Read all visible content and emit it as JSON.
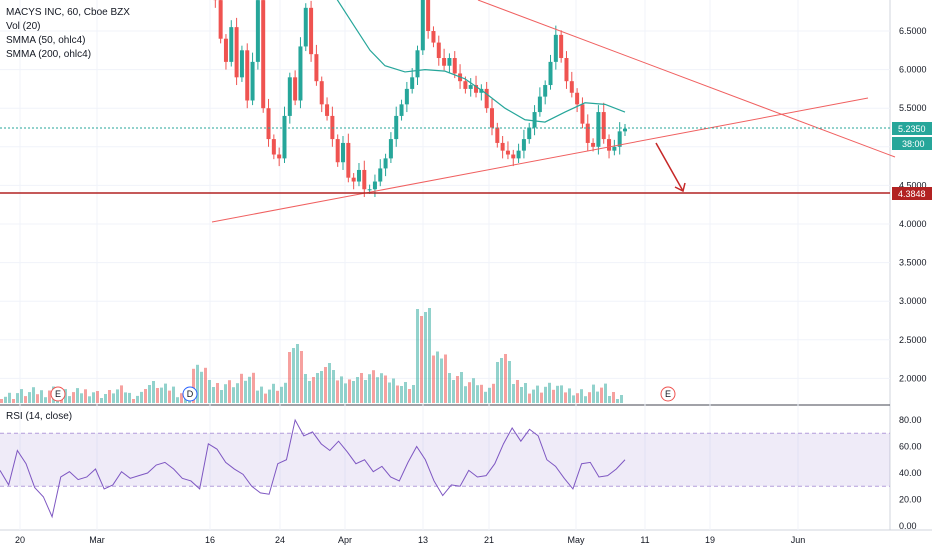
{
  "legend": {
    "title": "MACYS INC, 60, Cboe BZX",
    "vol": "Vol (20)",
    "smma50": "SMMA (50, ohlc4)",
    "smma200": "SMMA (200, ohlc4)"
  },
  "rsi_label": "RSI (14, close)",
  "chart_data": [
    {
      "type": "candlestick",
      "title": "MACYS INC, 60, Cboe BZX",
      "ylim": [
        1.65,
        7.05
      ],
      "y_ticks": [
        "6.5000",
        "6.0000",
        "5.5000",
        "5.0000",
        "4.5000",
        "4.0000",
        "3.5000",
        "3.0000",
        "2.5000",
        "2.0000"
      ],
      "x_ticks": [
        "20",
        "Mar",
        "16",
        "24",
        "Apr",
        "13",
        "21",
        "May",
        "11",
        "19",
        "Jun"
      ],
      "last_price": "5.2350",
      "countdown": "38:00",
      "support_level": "4.3848",
      "events": [
        "E",
        "D",
        "E"
      ],
      "series": [
        {
          "name": "Price",
          "points": [
            7.02,
            6.9,
            6.4,
            6.1,
            6.55,
            5.9,
            6.25,
            5.6,
            6.1,
            6.9,
            5.5,
            5.1,
            4.9,
            4.85,
            5.4,
            5.9,
            5.6,
            6.3,
            6.8,
            6.2,
            5.85,
            5.55,
            5.4,
            5.1,
            4.8,
            5.05,
            4.6,
            4.55,
            4.7,
            4.45,
            4.45,
            4.55,
            4.72,
            4.85,
            5.1,
            5.4,
            5.55,
            5.75,
            5.9,
            6.25,
            6.95,
            6.5,
            6.35,
            6.15,
            6.05,
            6.15,
            5.95,
            5.85,
            5.75,
            5.8,
            5.7,
            5.75,
            5.5,
            5.25,
            5.05,
            4.95,
            4.9,
            4.85,
            4.95,
            5.1,
            5.25,
            5.45,
            5.65,
            5.8,
            6.1,
            6.45,
            6.15,
            5.85,
            5.7,
            5.55,
            5.3,
            5.05,
            5.0,
            5.45,
            5.1,
            4.95,
            5.0,
            5.2,
            5.235
          ]
        },
        {
          "name": "SMMA (50, ohlc4)",
          "points": [
            [
              335,
              6.95
            ],
            [
              355,
              6.55
            ],
            [
              370,
              6.25
            ],
            [
              385,
              6.05
            ],
            [
              405,
              5.97
            ],
            [
              425,
              6.0
            ],
            [
              445,
              5.98
            ],
            [
              465,
              5.88
            ],
            [
              485,
              5.7
            ],
            [
              505,
              5.5
            ],
            [
              525,
              5.35
            ],
            [
              545,
              5.32
            ],
            [
              565,
              5.45
            ],
            [
              585,
              5.57
            ],
            [
              605,
              5.55
            ],
            [
              625,
              5.45
            ]
          ]
        },
        {
          "name": "SMMA (200, ohlc4)",
          "points": []
        },
        {
          "name": "Vol (20)",
          "values": [
            8,
            11,
            12,
            15,
            11,
            13,
            10,
            14,
            9,
            20,
            16,
            12,
            38,
            20,
            22,
            28,
            16,
            18,
            60,
            30,
            40,
            24,
            30,
            32,
            25,
            20,
            100,
            55,
            30,
            22,
            18,
            50,
            20,
            16,
            18,
            14,
            12,
            16,
            10
          ]
        },
        {
          "name": "RSI (14, close)",
          "ylim": [
            0,
            90
          ],
          "y_ticks": [
            "80.00",
            "60.00",
            "40.00",
            "20.00",
            "0.00"
          ],
          "bands": [
            70,
            30
          ],
          "values": [
            42,
            31,
            57,
            47,
            29,
            22,
            7,
            37,
            41,
            35,
            37,
            43,
            28,
            31,
            41,
            36,
            38,
            40,
            46,
            48,
            43,
            36,
            34,
            28,
            62,
            58,
            48,
            43,
            39,
            30,
            25,
            24,
            47,
            50,
            80,
            68,
            71,
            62,
            57,
            64,
            56,
            47,
            50,
            41,
            45,
            37,
            34,
            48,
            60,
            50,
            34,
            23,
            31,
            30,
            42,
            37,
            38,
            47,
            62,
            74,
            64,
            73,
            68,
            50,
            45,
            36,
            28,
            47,
            48,
            37,
            38,
            43,
            50
          ]
        }
      ]
    }
  ]
}
